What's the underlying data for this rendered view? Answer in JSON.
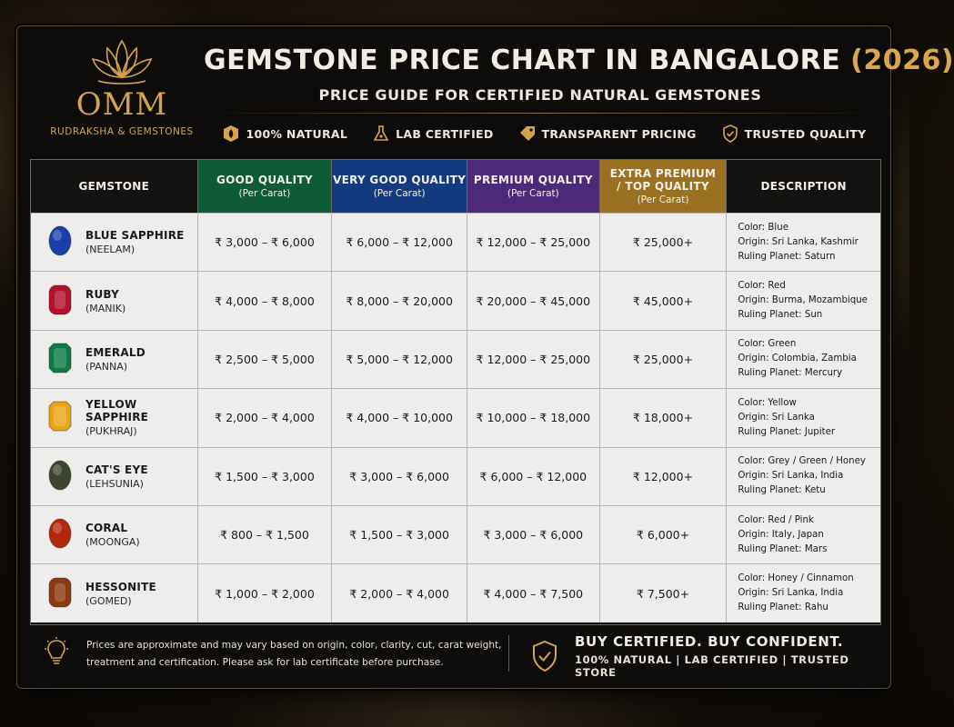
{
  "brand": {
    "name": "OMM",
    "tagline": "RUDRAKSHA & GEMSTONES"
  },
  "header": {
    "title_main": "GEMSTONE PRICE CHART IN BANGALORE ",
    "title_year": "(2026)",
    "subtitle": "PRICE GUIDE FOR CERTIFIED NATURAL GEMSTONES"
  },
  "badges": [
    {
      "label": "100% NATURAL",
      "icon": "natural-icon"
    },
    {
      "label": "LAB CERTIFIED",
      "icon": "flask-icon"
    },
    {
      "label": "TRANSPARENT PRICING",
      "icon": "price-tag-icon"
    },
    {
      "label": "TRUSTED QUALITY",
      "icon": "shield-check-icon"
    }
  ],
  "columns": [
    {
      "title": "GEMSTONE",
      "sub": ""
    },
    {
      "title": "GOOD QUALITY",
      "sub": "(Per Carat)"
    },
    {
      "title": "VERY GOOD QUALITY",
      "sub": "(Per Carat)"
    },
    {
      "title": "PREMIUM QUALITY",
      "sub": "(Per Carat)"
    },
    {
      "title": "EXTRA PREMIUM / TOP QUALITY",
      "sub": "(Per Carat)"
    },
    {
      "title": "DESCRIPTION",
      "sub": ""
    }
  ],
  "rows": [
    {
      "name": "BLUE SAPPHIRE",
      "alias": "(NEELAM)",
      "color": "#1b3fa8",
      "shape": "oval",
      "good": "₹ 3,000 – ₹ 6,000",
      "very_good": "₹ 6,000 – ₹ 12,000",
      "premium": "₹ 12,000 – ₹ 25,000",
      "top": "₹ 25,000+",
      "desc": [
        "Color: Blue",
        "Origin: Sri Lanka, Kashmir",
        "Ruling Planet: Saturn"
      ]
    },
    {
      "name": "RUBY",
      "alias": "(MANIK)",
      "color": "#b3122f",
      "shape": "cushion",
      "good": "₹ 4,000 – ₹ 8,000",
      "very_good": "₹ 8,000 – ₹ 20,000",
      "premium": "₹ 20,000 – ₹ 45,000",
      "top": "₹ 45,000+",
      "desc": [
        "Color: Red",
        "Origin: Burma, Mozambique",
        "Ruling Planet: Sun"
      ]
    },
    {
      "name": "EMERALD",
      "alias": "(PANNA)",
      "color": "#0e7a45",
      "shape": "octagon",
      "good": "₹ 2,500 – ₹ 5,000",
      "very_good": "₹ 5,000 – ₹ 12,000",
      "premium": "₹ 12,000 – ₹ 25,000",
      "top": "₹ 25,000+",
      "desc": [
        "Color: Green",
        "Origin: Colombia, Zambia",
        "Ruling Planet: Mercury"
      ]
    },
    {
      "name": "YELLOW SAPPHIRE",
      "alias": "(PUKHRAJ)",
      "color": "#e9a417",
      "shape": "octagon",
      "good": "₹ 2,000 – ₹ 4,000",
      "very_good": "₹ 4,000 – ₹ 10,000",
      "premium": "₹ 10,000 – ₹ 18,000",
      "top": "₹ 18,000+",
      "desc": [
        "Color: Yellow",
        "Origin: Sri Lanka",
        "Ruling Planet: Jupiter"
      ]
    },
    {
      "name": "CAT'S EYE",
      "alias": "(LEHSUNIA)",
      "color": "#3d4530",
      "shape": "oval",
      "good": "₹ 1,500 – ₹ 3,000",
      "very_good": "₹ 3,000 – ₹ 6,000",
      "premium": "₹ 6,000 – ₹ 12,000",
      "top": "₹ 12,000+",
      "desc": [
        "Color: Grey / Green / Honey",
        "Origin: Sri Lanka, India",
        "Ruling Planet: Ketu"
      ]
    },
    {
      "name": "CORAL",
      "alias": "(MOONGA)",
      "color": "#b5260f",
      "shape": "oval",
      "good": "₹ 800 – ₹ 1,500",
      "very_good": "₹ 1,500 – ₹ 3,000",
      "premium": "₹ 3,000 – ₹ 6,000",
      "top": "₹ 6,000+",
      "desc": [
        "Color: Red / Pink",
        "Origin: Italy, Japan",
        "Ruling Planet: Mars"
      ]
    },
    {
      "name": "HESSONITE",
      "alias": "(GOMED)",
      "color": "#8a3a10",
      "shape": "cushion",
      "good": "₹ 1,000 – ₹ 2,000",
      "very_good": "₹ 2,000 – ₹ 4,000",
      "premium": "₹ 4,000 – ₹ 7,500",
      "top": "₹ 7,500+",
      "desc": [
        "Color: Honey / Cinnamon",
        "Origin: Sri Lanka, India",
        "Ruling Planet: Rahu"
      ]
    }
  ],
  "footer": {
    "note_line1": "Prices are approximate and may vary based on origin, color, clarity, cut, carat weight,",
    "note_line2": "treatment and certification. Please ask for lab certificate before purchase.",
    "tagline": "BUY CERTIFIED. BUY CONFIDENT.",
    "tagline_sub": "100% NATURAL | LAB CERTIFIED | TRUSTED STORE"
  }
}
